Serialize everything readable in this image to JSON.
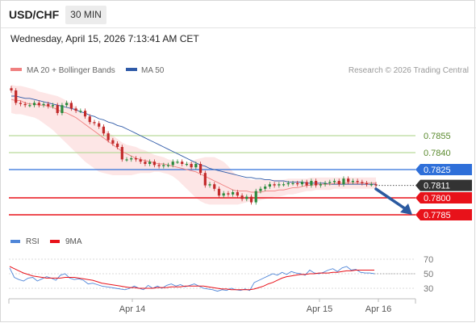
{
  "header": {
    "pair": "USD/CHF",
    "timeframe": "30 MIN",
    "datetime": "Wednesday, April 15, 2026 7:13:41 AM CET"
  },
  "legend": {
    "ma20_bb": "MA 20 + Bollinger Bands",
    "ma50": "MA 50",
    "credit": "Research © 2026 Trading Central"
  },
  "colors": {
    "ma20": "#f08080",
    "bb_fill": "#fde3e3",
    "ma50": "#2f5aa8",
    "resistance": "#b9d99a",
    "pivot": "#2e6fd9",
    "support": "#e8121a",
    "price_tag": "#333333",
    "arrow": "#2b5aa0",
    "rsi": "#4f86d8",
    "ma9": "#e8121a"
  },
  "chart_data": [
    {
      "type": "candlestick",
      "ylim": [
        0.7775,
        0.7905
      ],
      "x_ticks": [
        "Apr 14",
        "Apr 15",
        "Apr 16"
      ],
      "levels": [
        {
          "value": 0.7855,
          "label": "0.7855",
          "kind": "resistance"
        },
        {
          "value": 0.784,
          "label": "0.7840",
          "kind": "resistance"
        },
        {
          "value": 0.7825,
          "label": "0.7825",
          "kind": "pivot"
        },
        {
          "value": 0.78,
          "label": "0.7800",
          "kind": "support"
        },
        {
          "value": 0.7785,
          "label": "0.7785",
          "kind": "support"
        }
      ],
      "last_price": {
        "value": 0.7811,
        "label": "0.7811"
      },
      "forecast_arrow": {
        "from": 0.781,
        "to": 0.7785,
        "direction": "down"
      },
      "closes": [
        0.7895,
        0.7884,
        0.7883,
        0.7882,
        0.7882,
        0.7884,
        0.7882,
        0.7883,
        0.7881,
        0.7882,
        0.7875,
        0.7882,
        0.7884,
        0.7879,
        0.7877,
        0.7877,
        0.7872,
        0.7867,
        0.7866,
        0.7863,
        0.7857,
        0.7851,
        0.7848,
        0.7845,
        0.7834,
        0.7834,
        0.7835,
        0.7834,
        0.7832,
        0.783,
        0.7832,
        0.7829,
        0.7828,
        0.7829,
        0.7829,
        0.7832,
        0.7832,
        0.783,
        0.783,
        0.7827,
        0.783,
        0.7822,
        0.7811,
        0.7812,
        0.7808,
        0.7802,
        0.7804,
        0.7803,
        0.7805,
        0.7802,
        0.7799,
        0.7801,
        0.7796,
        0.7806,
        0.7808,
        0.781,
        0.7812,
        0.7811,
        0.7812,
        0.7812,
        0.7813,
        0.7813,
        0.7812,
        0.7814,
        0.7811,
        0.7815,
        0.7811,
        0.7812,
        0.7813,
        0.7814,
        0.7815,
        0.7812,
        0.7817,
        0.7814,
        0.7815,
        0.7814,
        0.7813,
        0.7812,
        0.7812,
        0.7811
      ],
      "ma20": [
        0.7887,
        0.7886,
        0.7886,
        0.7884,
        0.7883,
        0.7883,
        0.7882,
        0.7882,
        0.7881,
        0.788,
        0.7878,
        0.7876,
        0.7875,
        0.7873,
        0.7871,
        0.7868,
        0.7865,
        0.7862,
        0.7859,
        0.7856,
        0.7853,
        0.785,
        0.7847,
        0.7844,
        0.7841,
        0.7839,
        0.7837,
        0.7835,
        0.7834,
        0.7833,
        0.7832,
        0.7831,
        0.783,
        0.783,
        0.7829,
        0.7828,
        0.7827,
        0.7826,
        0.7825,
        0.7824,
        0.7823,
        0.7821,
        0.7819,
        0.7817,
        0.7815,
        0.7813,
        0.7811,
        0.7809,
        0.7807,
        0.7806,
        0.7806,
        0.7806,
        0.7805,
        0.7805,
        0.7805,
        0.7806,
        0.7806,
        0.7806,
        0.7807,
        0.7807,
        0.7808,
        0.7809,
        0.7809,
        0.781,
        0.7811,
        0.7811,
        0.7812,
        0.7812,
        0.7812,
        0.7812,
        0.7813,
        0.7813,
        0.7813,
        0.7813,
        0.7813,
        0.7813,
        0.7813,
        0.7813,
        0.7813,
        0.7813
      ],
      "bb_upper": [
        0.79,
        0.7899,
        0.7899,
        0.7898,
        0.7897,
        0.7896,
        0.7894,
        0.7893,
        0.7892,
        0.7891,
        0.789,
        0.7888,
        0.7886,
        0.7883,
        0.788,
        0.7876,
        0.7873,
        0.7869,
        0.7866,
        0.7864,
        0.7861,
        0.7858,
        0.7855,
        0.7852,
        0.7849,
        0.7847,
        0.7846,
        0.7845,
        0.7843,
        0.7842,
        0.784,
        0.7838,
        0.7837,
        0.7836,
        0.7834,
        0.7833,
        0.7832,
        0.7831,
        0.7831,
        0.7832,
        0.7834,
        0.7835,
        0.7836,
        0.7836,
        0.7836,
        0.7834,
        0.7832,
        0.7828,
        0.7823,
        0.782,
        0.7818,
        0.7817,
        0.7816,
        0.7816,
        0.7816,
        0.7816,
        0.7816,
        0.7816,
        0.7816,
        0.7816,
        0.7817,
        0.7817,
        0.7817,
        0.7817,
        0.7817,
        0.7818,
        0.7818,
        0.7818,
        0.7818,
        0.7818,
        0.7818,
        0.7818,
        0.7818,
        0.7818,
        0.7818,
        0.7818,
        0.7818,
        0.7818,
        0.7818,
        0.7818
      ],
      "bb_lower": [
        0.7875,
        0.7874,
        0.7874,
        0.7873,
        0.7872,
        0.7871,
        0.7869,
        0.7866,
        0.7863,
        0.786,
        0.7856,
        0.7852,
        0.7848,
        0.7844,
        0.784,
        0.7836,
        0.7832,
        0.7829,
        0.7826,
        0.7823,
        0.7822,
        0.7821,
        0.782,
        0.782,
        0.782,
        0.782,
        0.782,
        0.7821,
        0.7822,
        0.7822,
        0.7822,
        0.7823,
        0.7823,
        0.7822,
        0.7821,
        0.7819,
        0.7816,
        0.7812,
        0.7808,
        0.7804,
        0.78,
        0.7797,
        0.7795,
        0.7794,
        0.7794,
        0.7794,
        0.7794,
        0.7794,
        0.7794,
        0.7794,
        0.7795,
        0.7796,
        0.7797,
        0.7797,
        0.7798,
        0.7799,
        0.78,
        0.7801,
        0.7801,
        0.7802,
        0.7803,
        0.7803,
        0.7804,
        0.7805,
        0.7806,
        0.7806,
        0.7807,
        0.7807,
        0.7807,
        0.7807,
        0.7808,
        0.7808,
        0.7808,
        0.7808,
        0.7808,
        0.7808,
        0.7808,
        0.7808,
        0.7808,
        0.7808
      ],
      "ma50": [
        0.789,
        0.789,
        0.7889,
        0.7888,
        0.7888,
        0.7887,
        0.7886,
        0.7885,
        0.7884,
        0.7883,
        0.7882,
        0.7881,
        0.788,
        0.7879,
        0.7878,
        0.7876,
        0.7875,
        0.7873,
        0.7872,
        0.787,
        0.7869,
        0.7867,
        0.7866,
        0.7864,
        0.7863,
        0.7861,
        0.7859,
        0.7857,
        0.7855,
        0.7853,
        0.7851,
        0.7849,
        0.7847,
        0.7845,
        0.7843,
        0.7841,
        0.7839,
        0.7837,
        0.7835,
        0.7833,
        0.7831,
        0.7829,
        0.7828,
        0.7826,
        0.7825,
        0.7824,
        0.7823,
        0.7822,
        0.7821,
        0.782,
        0.7819,
        0.7818,
        0.7818,
        0.7817,
        0.7817,
        0.7816,
        0.7816,
        0.7815,
        0.7815,
        0.7815,
        0.7814,
        0.7814,
        0.7814,
        0.7814,
        0.7813,
        0.7813,
        0.7813,
        0.7813,
        0.7813,
        0.7812,
        0.7812,
        0.7812,
        0.7812,
        0.7812,
        0.7812,
        0.7812,
        0.7812,
        0.7812,
        0.7812,
        0.7812
      ]
    },
    {
      "type": "line",
      "legend": [
        "RSI",
        "9MA"
      ],
      "y_ticks": [
        70,
        50,
        30
      ],
      "ylim": [
        20,
        80
      ],
      "rsi": [
        58,
        45,
        42,
        40,
        44,
        45,
        40,
        43,
        46,
        44,
        41,
        48,
        50,
        44,
        42,
        43,
        41,
        36,
        37,
        35,
        33,
        32,
        31,
        30,
        29,
        28,
        30,
        33,
        30,
        28,
        34,
        30,
        33,
        30,
        34,
        36,
        33,
        35,
        32,
        34,
        36,
        33,
        30,
        29,
        28,
        26,
        28,
        27,
        30,
        28,
        27,
        29,
        27,
        38,
        41,
        44,
        47,
        50,
        48,
        52,
        49,
        53,
        51,
        50,
        48,
        55,
        51,
        50,
        52,
        55,
        57,
        53,
        58,
        60,
        55,
        56,
        52,
        51,
        51,
        50
      ],
      "ma9": [
        60,
        57,
        54,
        51,
        49,
        47,
        46,
        45,
        44,
        44,
        44,
        44,
        45,
        45,
        45,
        44,
        43,
        42,
        41,
        39,
        37,
        36,
        35,
        34,
        33,
        32,
        31,
        31,
        30,
        30,
        30,
        30,
        31,
        31,
        31,
        32,
        32,
        32,
        33,
        33,
        33,
        33,
        33,
        32,
        31,
        30,
        29,
        29,
        28,
        28,
        28,
        28,
        28,
        29,
        31,
        33,
        36,
        38,
        41,
        44,
        46,
        47,
        48,
        49,
        49,
        50,
        50,
        51,
        51,
        51,
        52,
        52,
        53,
        54,
        54,
        55,
        55,
        55,
        55,
        55
      ]
    }
  ]
}
